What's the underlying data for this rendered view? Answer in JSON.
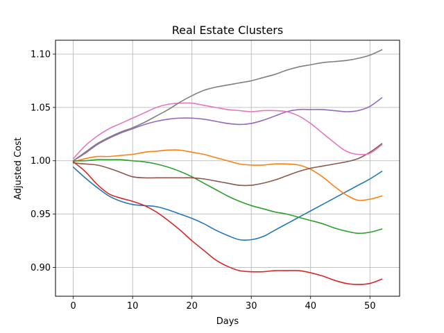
{
  "chart_data": {
    "type": "line",
    "title": "Real Estate Clusters",
    "xlabel": "Days",
    "ylabel": "Adjusted Cost",
    "xlim": [
      -3,
      55
    ],
    "ylim": [
      0.873,
      1.113
    ],
    "x_ticks": [
      0,
      10,
      20,
      30,
      40,
      50
    ],
    "x_tick_labels": [
      "0",
      "10",
      "20",
      "30",
      "40",
      "50"
    ],
    "y_ticks": [
      0.9,
      0.95,
      1.0,
      1.05,
      1.1
    ],
    "y_tick_labels": [
      "0.90",
      "0.95",
      "1.00",
      "1.05",
      "1.10"
    ],
    "grid": true,
    "legend": false,
    "x": [
      0,
      2,
      4,
      6,
      8,
      10,
      12,
      14,
      16,
      18,
      20,
      22,
      24,
      26,
      28,
      30,
      32,
      34,
      36,
      38,
      40,
      42,
      44,
      46,
      48,
      50,
      52
    ],
    "series": [
      {
        "color": "#1f77b4",
        "values": [
          0.994,
          0.984,
          0.975,
          0.967,
          0.962,
          0.959,
          0.958,
          0.957,
          0.954,
          0.95,
          0.946,
          0.941,
          0.935,
          0.93,
          0.926,
          0.926,
          0.929,
          0.935,
          0.941,
          0.947,
          0.953,
          0.959,
          0.965,
          0.971,
          0.977,
          0.983,
          0.99
        ]
      },
      {
        "color": "#ff7f0e",
        "values": [
          0.999,
          1.002,
          1.004,
          1.004,
          1.005,
          1.006,
          1.008,
          1.009,
          1.01,
          1.01,
          1.008,
          1.006,
          1.003,
          1.0,
          0.997,
          0.996,
          0.996,
          0.997,
          0.997,
          0.996,
          0.992,
          0.985,
          0.976,
          0.968,
          0.963,
          0.964,
          0.967
        ]
      },
      {
        "color": "#2ca02c",
        "values": [
          1.0,
          1.0,
          1.001,
          1.001,
          1.001,
          1.0,
          0.999,
          0.997,
          0.994,
          0.99,
          0.985,
          0.979,
          0.973,
          0.967,
          0.962,
          0.958,
          0.955,
          0.952,
          0.95,
          0.947,
          0.944,
          0.941,
          0.937,
          0.934,
          0.932,
          0.933,
          0.936
        ]
      },
      {
        "color": "#d62728",
        "values": [
          0.999,
          0.99,
          0.978,
          0.969,
          0.965,
          0.962,
          0.958,
          0.952,
          0.944,
          0.935,
          0.925,
          0.916,
          0.907,
          0.901,
          0.897,
          0.896,
          0.896,
          0.897,
          0.897,
          0.897,
          0.895,
          0.892,
          0.888,
          0.885,
          0.884,
          0.885,
          0.889
        ]
      },
      {
        "color": "#9467bd",
        "values": [
          1.0,
          1.007,
          1.015,
          1.021,
          1.026,
          1.03,
          1.034,
          1.037,
          1.039,
          1.04,
          1.04,
          1.039,
          1.037,
          1.035,
          1.034,
          1.035,
          1.038,
          1.042,
          1.046,
          1.048,
          1.048,
          1.048,
          1.047,
          1.046,
          1.047,
          1.051,
          1.059
        ]
      },
      {
        "color": "#8c564b",
        "values": [
          0.998,
          0.997,
          0.996,
          0.993,
          0.989,
          0.985,
          0.984,
          0.984,
          0.984,
          0.984,
          0.984,
          0.983,
          0.981,
          0.979,
          0.977,
          0.977,
          0.979,
          0.982,
          0.986,
          0.99,
          0.993,
          0.995,
          0.997,
          0.999,
          1.002,
          1.008,
          1.016
        ]
      },
      {
        "color": "#e377c2",
        "values": [
          1.002,
          1.014,
          1.023,
          1.03,
          1.035,
          1.04,
          1.045,
          1.05,
          1.053,
          1.054,
          1.054,
          1.052,
          1.05,
          1.048,
          1.047,
          1.046,
          1.047,
          1.047,
          1.046,
          1.042,
          1.035,
          1.026,
          1.017,
          1.009,
          1.006,
          1.007,
          1.015
        ]
      },
      {
        "color": "#7f7f7f",
        "values": [
          1.0,
          1.008,
          1.016,
          1.022,
          1.027,
          1.031,
          1.036,
          1.042,
          1.048,
          1.055,
          1.061,
          1.066,
          1.069,
          1.071,
          1.073,
          1.075,
          1.078,
          1.081,
          1.085,
          1.088,
          1.09,
          1.092,
          1.093,
          1.094,
          1.096,
          1.099,
          1.104
        ]
      }
    ]
  }
}
